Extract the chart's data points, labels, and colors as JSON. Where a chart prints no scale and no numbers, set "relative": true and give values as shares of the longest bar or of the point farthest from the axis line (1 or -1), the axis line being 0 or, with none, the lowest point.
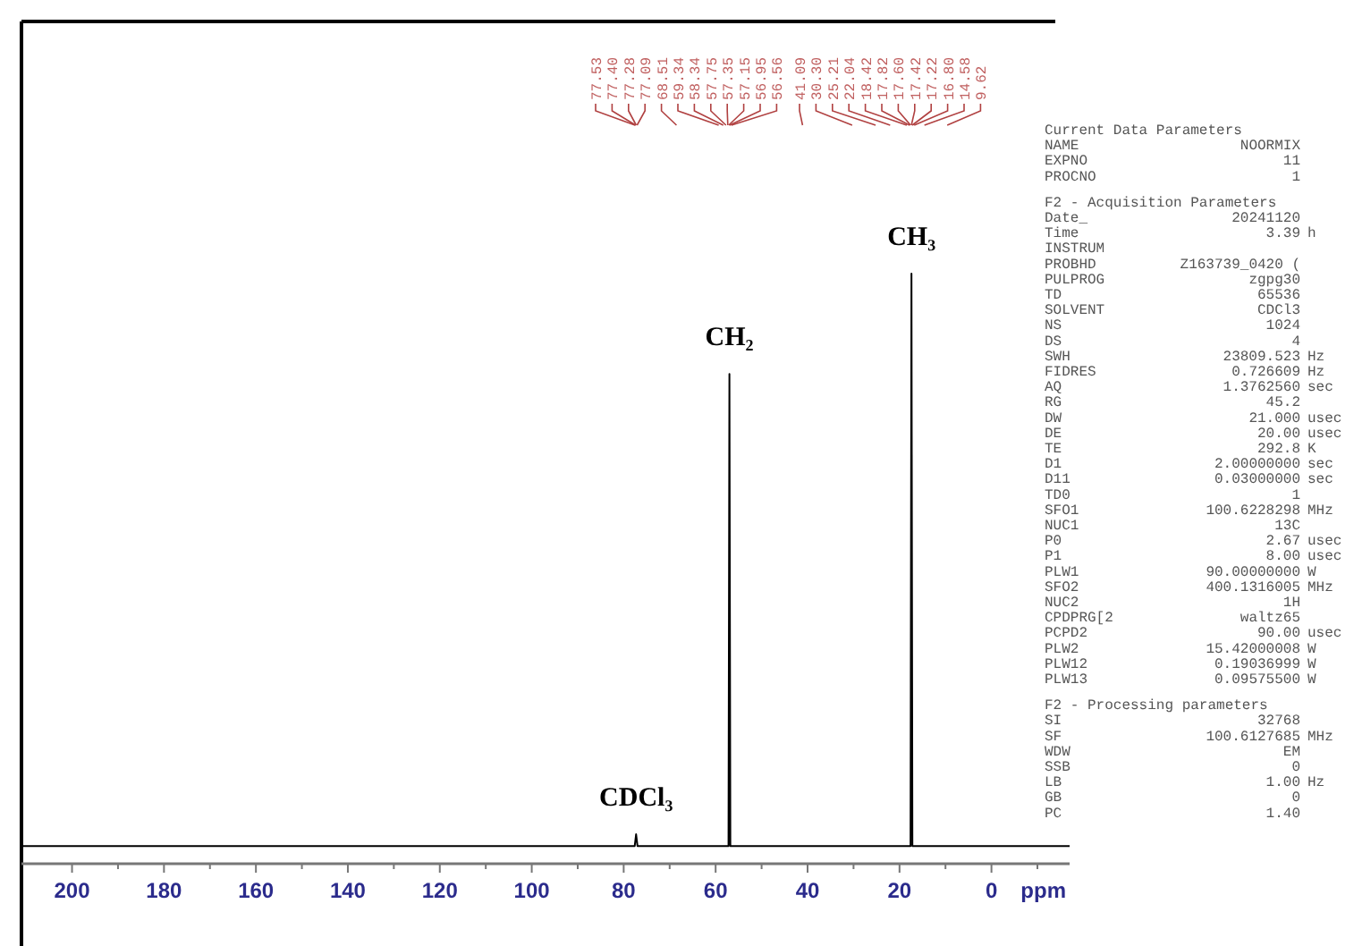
{
  "chart_data": [
    {
      "type": "line",
      "relative": true,
      "xlabel": "ppm",
      "xlim": [
        211,
        -17
      ],
      "xticks": [
        200,
        {
          "value": 190,
          "label": null
        },
        180,
        {
          "value": 170,
          "label": null
        },
        160,
        {
          "value": 150,
          "label": null
        },
        140,
        {
          "value": 130,
          "label": null
        },
        120,
        {
          "value": 110,
          "label": null
        },
        100,
        {
          "value": 90,
          "label": null
        },
        80,
        {
          "value": 70,
          "label": null
        },
        60,
        {
          "value": 50,
          "label": null
        },
        40,
        {
          "value": 30,
          "label": null
        },
        20,
        {
          "value": 10,
          "label": null
        },
        0,
        {
          "value": -10,
          "label": null
        }
      ],
      "series": [
        {
          "color": "#000000",
          "x": [
            211,
            77.6,
            77.3,
            77.0,
            57.2,
            57.0,
            56.8,
            17.6,
            17.4,
            17.2,
            -17
          ],
          "values": [
            0.03,
            0.03,
            0.05,
            0.03,
            0.03,
            0.83,
            0.03,
            0.03,
            1,
            0.03,
            0.03
          ]
        }
      ],
      "annotations": [
        {
          "text": "CH₃",
          "x": 17.4,
          "y": 1
        },
        {
          "text": "CH₂",
          "x": 57.0,
          "y": 0.83
        },
        {
          "text": "CDCl₃",
          "x": 77.3,
          "y": 0.05
        },
        "77.53",
        "77.40",
        "77.28",
        "77.09",
        "68.51",
        "59.34",
        "58.34",
        "57.75",
        "57.35",
        "57.15",
        "56.95",
        "56.56",
        "41.09",
        "30.30",
        "25.21",
        "22.04",
        "18.42",
        "17.82",
        "17.60",
        "17.42",
        "17.22",
        "16.80",
        "14.58",
        "9.62"
      ]
    },
    {
      "type": "other",
      "title": "Current Data Parameters",
      "annotations": [
        "NAME  NOORMIX",
        "EXPNO  11",
        "PROCNO  1"
      ]
    },
    {
      "type": "other",
      "title": "F2 - Acquisition Parameters",
      "annotations": [
        "Date_  20241120",
        "Time  3.39  h",
        "INSTRUM",
        "PROBHD  Z163739_0420 (",
        "PULPROG  zgpg30",
        "TD  65536",
        "SOLVENT  CDCl3",
        "NS  1024",
        "DS  4",
        "SWH  23809.523  Hz",
        "FIDRES  0.726609  Hz",
        "AQ  1.3762560  sec",
        "RG  45.2",
        "DW  21.000  usec",
        "DE  20.00  usec",
        "TE  292.8  K",
        "D1  2.00000000  sec",
        "D11  0.03000000  sec",
        "TD0  1",
        "SFO1  100.6228298  MHz",
        "NUC1  13C",
        "P0  2.67  usec",
        "P1  8.00  usec",
        "PLW1  90.00000000  W",
        "SFO2  400.1316005  MHz",
        "NUC2  1H",
        "CPDPRG[2  waltz65",
        "PCPD2  90.00  usec",
        "PLW2  15.42000008  W",
        "PLW12  0.19036999  W",
        "PLW13  0.09575500  W"
      ]
    },
    {
      "type": "other",
      "title": "F2 - Processing parameters",
      "annotations": [
        "SI  32768",
        "SF  100.6127685  MHz",
        "WDW  EM",
        "SSB  0",
        "LB  1.00  Hz",
        "GB  0",
        "PC  1.40"
      ]
    }
  ]
}
